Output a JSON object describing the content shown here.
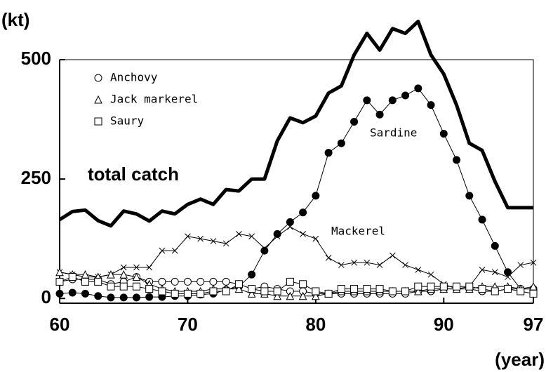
{
  "chart_data": {
    "type": "line",
    "y_label": "(kt)",
    "x_label": "(year)",
    "xlim": [
      60,
      97
    ],
    "xticks": [
      60,
      70,
      80,
      90,
      97
    ],
    "ylim": [
      -10,
      500
    ],
    "yticks": [
      0,
      250,
      500
    ],
    "x": [
      60,
      61,
      62,
      63,
      64,
      65,
      66,
      67,
      68,
      69,
      70,
      71,
      72,
      73,
      74,
      75,
      76,
      77,
      78,
      79,
      80,
      81,
      82,
      83,
      84,
      85,
      86,
      87,
      88,
      89,
      90,
      91,
      92,
      93,
      94,
      95,
      96,
      97
    ],
    "series": [
      {
        "name": "total catch",
        "color": "#000000",
        "marker": "none",
        "legend": false,
        "line_width": 5,
        "values": [
          165,
          182,
          185,
          163,
          152,
          183,
          177,
          162,
          183,
          177,
          197,
          208,
          197,
          228,
          225,
          250,
          250,
          330,
          378,
          368,
          382,
          430,
          445,
          510,
          555,
          520,
          565,
          555,
          580,
          510,
          470,
          405,
          325,
          310,
          245,
          190,
          190,
          190
        ]
      },
      {
        "name": "Sardine",
        "color": "#000000",
        "marker": "filled-circle",
        "legend": false,
        "line_width": 1,
        "values": [
          10,
          12,
          10,
          5,
          2,
          2,
          2,
          3,
          3,
          5,
          5,
          8,
          10,
          18,
          25,
          50,
          100,
          135,
          160,
          180,
          215,
          305,
          325,
          370,
          415,
          385,
          415,
          425,
          440,
          405,
          345,
          290,
          215,
          165,
          110,
          55,
          20,
          20
        ]
      },
      {
        "name": "Mackerel",
        "color": "#000000",
        "marker": "x",
        "legend": false,
        "line_width": 1,
        "values": [
          55,
          50,
          45,
          45,
          50,
          65,
          65,
          65,
          100,
          100,
          130,
          125,
          120,
          115,
          135,
          130,
          105,
          130,
          150,
          135,
          125,
          85,
          70,
          75,
          75,
          70,
          90,
          70,
          60,
          50,
          30,
          20,
          25,
          60,
          55,
          45,
          70,
          75
        ]
      },
      {
        "name": "Anchovy",
        "color": "#000000",
        "marker": "circle",
        "legend": true,
        "line_width": 1,
        "values": [
          35,
          40,
          40,
          40,
          30,
          35,
          45,
          35,
          35,
          35,
          35,
          35,
          35,
          35,
          30,
          20,
          25,
          20,
          15,
          15,
          10,
          10,
          10,
          10,
          10,
          10,
          10,
          10,
          15,
          15,
          20,
          20,
          20,
          15,
          15,
          20,
          20,
          20
        ]
      },
      {
        "name": "Jack markerel",
        "color": "#000000",
        "marker": "triangle",
        "legend": true,
        "line_width": 1,
        "values": [
          55,
          50,
          50,
          45,
          50,
          50,
          45,
          30,
          20,
          15,
          15,
          15,
          20,
          20,
          20,
          10,
          10,
          5,
          5,
          5,
          5,
          10,
          15,
          15,
          15,
          15,
          15,
          15,
          15,
          20,
          20,
          20,
          20,
          25,
          25,
          25,
          20,
          25
        ]
      },
      {
        "name": "Saury",
        "color": "#000000",
        "marker": "square",
        "legend": true,
        "line_width": 1,
        "values": [
          35,
          45,
          35,
          35,
          25,
          25,
          25,
          20,
          15,
          10,
          10,
          10,
          15,
          15,
          30,
          20,
          15,
          15,
          35,
          30,
          15,
          10,
          20,
          20,
          20,
          20,
          15,
          15,
          25,
          25,
          25,
          25,
          25,
          20,
          15,
          20,
          15,
          10
        ]
      }
    ]
  }
}
